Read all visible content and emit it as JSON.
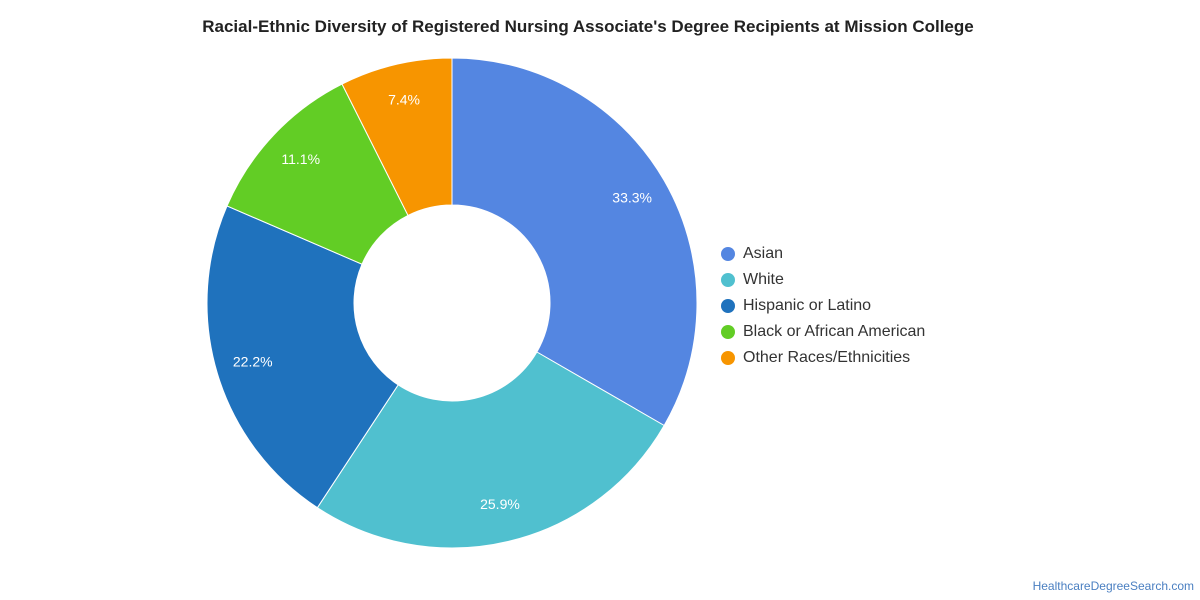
{
  "chart_data": {
    "type": "pie",
    "title": "Racial-Ethnic Diversity of Registered Nursing Associate's Degree Recipients at Mission College",
    "donut": true,
    "legend_position": "right",
    "categories": [
      "Asian",
      "White",
      "Hispanic or Latino",
      "Black or African American",
      "Other Races/Ethnicities"
    ],
    "values": [
      33.3,
      25.9,
      22.2,
      11.1,
      7.4
    ],
    "labels": [
      "33.3%",
      "25.9%",
      "22.2%",
      "11.1%",
      "7.4%"
    ],
    "colors": [
      "#5486e1",
      "#50c0cf",
      "#1f72bd",
      "#62cd25",
      "#f79500"
    ]
  },
  "footer": {
    "source": "HealthcareDegreeSearch.com"
  }
}
